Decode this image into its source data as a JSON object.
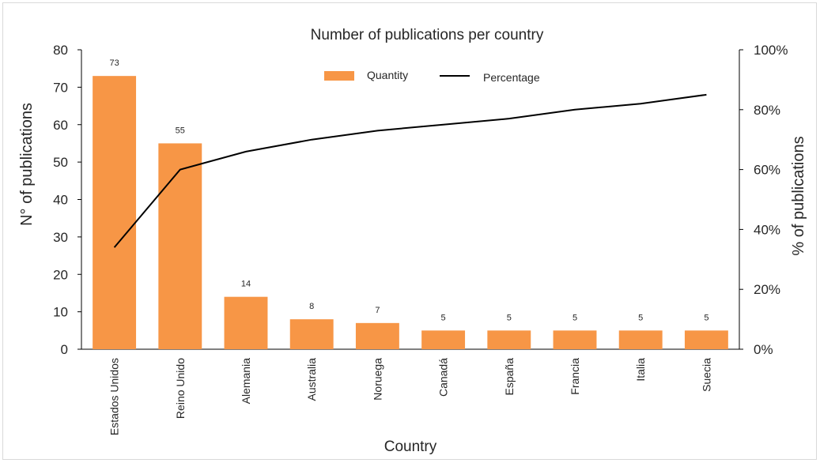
{
  "chart_data": {
    "type": "bar",
    "title": "Number of publications per country",
    "xlabel": "Country",
    "ylabel": "N° of publications",
    "y2label": "% of publications",
    "categories": [
      "Estados Unidos",
      "Reino Unido",
      "Alemania",
      "Australia",
      "Noruega",
      "Canadá",
      "España",
      "Francia",
      "Italia",
      "Suecia"
    ],
    "ylim": [
      0,
      80
    ],
    "y_ticks": [
      0,
      10,
      20,
      30,
      40,
      50,
      60,
      70,
      80
    ],
    "y2lim": [
      0,
      100
    ],
    "y2_ticks": [
      "0%",
      "20%",
      "40%",
      "60%",
      "80%",
      "100%"
    ],
    "grid": false,
    "legend_position": "top-center",
    "series": [
      {
        "name": "Quantity",
        "type": "bar",
        "axis": "left",
        "color": "#f79646",
        "values": [
          73,
          55,
          14,
          8,
          7,
          5,
          5,
          5,
          5,
          5
        ],
        "data_labels": [
          "73",
          "55",
          "14",
          "8",
          "7",
          "5",
          "5",
          "5",
          "5",
          "5"
        ]
      },
      {
        "name": "Percentage",
        "type": "line",
        "axis": "right",
        "color": "#000000",
        "values": [
          34,
          60,
          66,
          70,
          73,
          75,
          77,
          80,
          82,
          85
        ]
      }
    ]
  }
}
